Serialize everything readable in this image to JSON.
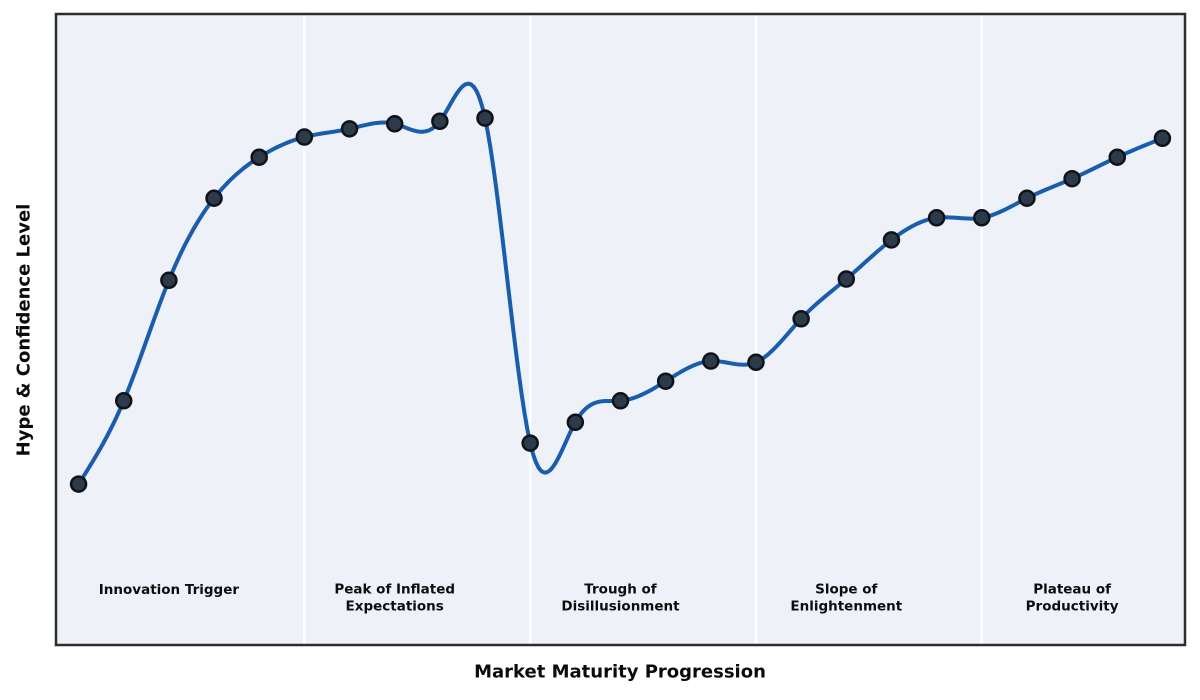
{
  "chart_data": {
    "type": "line",
    "title": "",
    "xlabel": "Market Maturity Progression",
    "ylabel": "Hype & Confidence Level",
    "x": [
      1,
      2,
      3,
      4,
      5,
      6,
      7,
      8,
      9,
      10,
      11,
      12,
      13,
      14,
      15,
      16,
      17,
      18,
      19,
      20,
      21,
      22,
      23,
      24,
      25
    ],
    "y": [
      25.5,
      38.7,
      57.8,
      70.8,
      77.3,
      80.5,
      81.8,
      82.6,
      83.0,
      83.5,
      32.0,
      35.3,
      38.7,
      41.8,
      45.0,
      44.8,
      51.7,
      58.0,
      64.2,
      67.7,
      67.7,
      70.8,
      73.9,
      77.3,
      80.3
    ],
    "xlim": [
      0.5,
      25.5
    ],
    "ylim": [
      0,
      100
    ],
    "grid": false,
    "legend": null,
    "axis_ticks": "none",
    "interpolation": "natural-cubic-spline",
    "marker": "circle",
    "phases": [
      {
        "name": "Innovation Trigger",
        "line1": "Innovation Trigger",
        "line2": "",
        "x_start": 0.5,
        "x_end": 6,
        "label_x": 3
      },
      {
        "name": "Peak of Inflated Expectations",
        "line1": "Peak of Inflated",
        "line2": "Expectations",
        "x_start": 6,
        "x_end": 11,
        "label_x": 8
      },
      {
        "name": "Trough of Disillusionment",
        "line1": "Trough of",
        "line2": "Disillusionment",
        "x_start": 11,
        "x_end": 16,
        "label_x": 13
      },
      {
        "name": "Slope of Enlightenment",
        "line1": "Slope of",
        "line2": "Enlightenment",
        "x_start": 16,
        "x_end": 21,
        "label_x": 18
      },
      {
        "name": "Plateau of Productivity",
        "line1": "Plateau of",
        "line2": "Productivity",
        "x_start": 21,
        "x_end": 25.5,
        "label_x": 23
      }
    ],
    "colors": {
      "line": "#1a5cad",
      "marker_fill": "#2c3a4a",
      "marker_edge": "#0e1319",
      "plot_background": "#eef2f8",
      "phase_divider": "#ffffff",
      "spine": "#2a2d31",
      "text": "#0b0b0b",
      "figure_background": "#ffffff"
    }
  }
}
